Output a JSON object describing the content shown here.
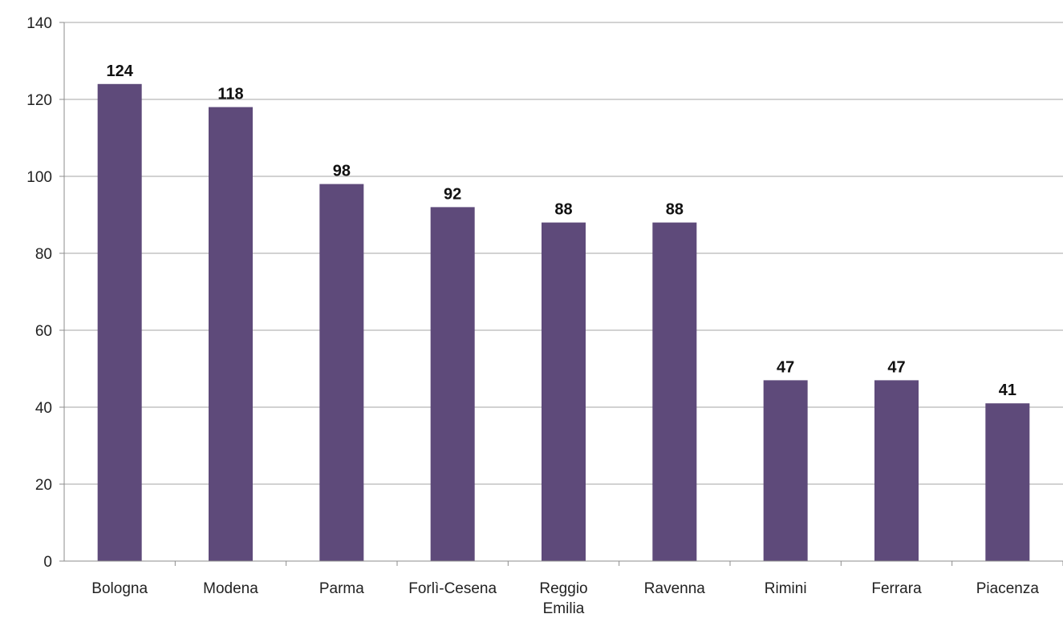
{
  "chart_data": {
    "type": "bar",
    "categories": [
      [
        "Bologna"
      ],
      [
        "Modena"
      ],
      [
        "Parma"
      ],
      [
        "Forlì-Cesena"
      ],
      [
        "Reggio",
        "Emilia"
      ],
      [
        "Ravenna"
      ],
      [
        "Rimini"
      ],
      [
        "Ferrara"
      ],
      [
        "Piacenza"
      ]
    ],
    "values": [
      124,
      118,
      98,
      92,
      88,
      88,
      47,
      47,
      41
    ],
    "data_labels": [
      "124",
      "118",
      "98",
      "92",
      "88",
      "88",
      "47",
      "47",
      "41"
    ],
    "title": "",
    "xlabel": "",
    "ylabel": "",
    "ylim": [
      0,
      140
    ],
    "yticks": [
      0,
      20,
      40,
      60,
      80,
      100,
      120,
      140
    ],
    "grid": true,
    "legend": "none",
    "colors": {
      "bar": "#5e4a7a",
      "grid": "#a6a6a6",
      "axis": "#8c8c8c"
    }
  }
}
